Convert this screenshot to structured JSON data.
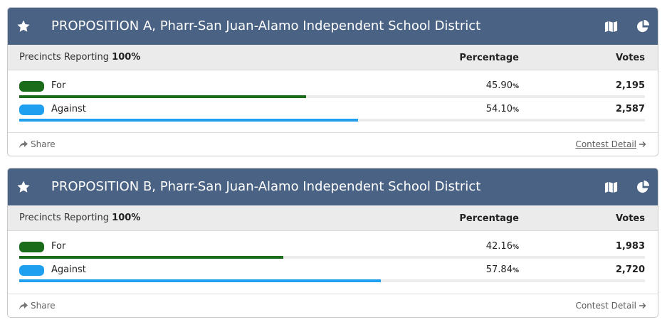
{
  "colors": {
    "header_bg": "#4a6283",
    "for": "#1a6b1a",
    "against": "#1f9ff0"
  },
  "contests": [
    {
      "title": "PROPOSITION A, Pharr-San Juan-Alamo Independent School District",
      "precincts_label": "Precincts Reporting",
      "precincts_value": "100%",
      "pct_header": "Percentage",
      "votes_header": "Votes",
      "choices": [
        {
          "label": "For",
          "pct": "45.90",
          "pct_unit": "%",
          "votes": "2,195",
          "share": 45.9
        },
        {
          "label": "Against",
          "pct": "54.10",
          "pct_unit": "%",
          "votes": "2,587",
          "share": 54.1
        }
      ],
      "share_label": "Share",
      "detail_label": "Contest Detail"
    },
    {
      "title": "PROPOSITION B, Pharr-San Juan-Alamo Independent School District",
      "precincts_label": "Precincts Reporting",
      "precincts_value": "100%",
      "pct_header": "Percentage",
      "votes_header": "Votes",
      "choices": [
        {
          "label": "For",
          "pct": "42.16",
          "pct_unit": "%",
          "votes": "1,983",
          "share": 42.16
        },
        {
          "label": "Against",
          "pct": "57.84",
          "pct_unit": "%",
          "votes": "2,720",
          "share": 57.84
        }
      ],
      "share_label": "Share",
      "detail_label": "Contest Detail"
    }
  ],
  "icons": [
    "star-icon",
    "map-icon",
    "pie-chart-icon",
    "share-arrow-icon",
    "arrow-right-icon"
  ]
}
